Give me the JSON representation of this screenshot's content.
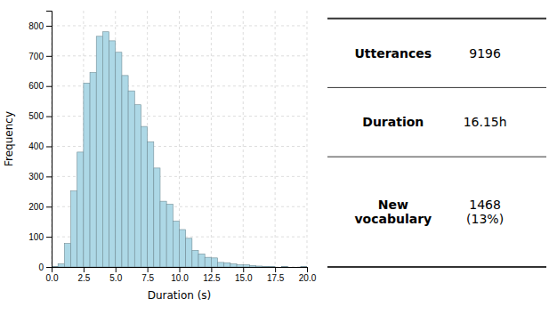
{
  "chart_data": [
    {
      "type": "histogram",
      "xlabel": "Duration (s)",
      "ylabel": "Frequency",
      "bins": [
        0,
        0.5,
        1,
        1.5,
        2,
        2.5,
        3,
        3.5,
        4,
        4.5,
        5,
        5.5,
        6,
        6.5,
        7,
        7.5,
        8,
        8.5,
        9,
        9.5,
        10,
        10.5,
        11,
        11.5,
        12,
        12.5,
        13,
        13.5,
        14,
        14.5,
        15,
        15.5,
        16,
        16.5,
        17,
        17.5,
        18,
        18.5,
        19,
        19.5,
        20
      ],
      "values": [
        2,
        10,
        78,
        252,
        381,
        610,
        645,
        765,
        780,
        750,
        712,
        635,
        584,
        538,
        466,
        415,
        328,
        218,
        208,
        152,
        124,
        95,
        55,
        43,
        32,
        30,
        15,
        14,
        10,
        7,
        7,
        5,
        3,
        2,
        1,
        0,
        1,
        0,
        0,
        1
      ],
      "color": "#add8e6",
      "xlim": [
        0,
        20
      ],
      "ylim": [
        0,
        850
      ],
      "xticks": [
        {
          "value": 0,
          "label": "0.0"
        },
        2.5,
        {
          "value": 5,
          "label": "5.0"
        },
        7.5,
        {
          "value": 10,
          "label": "10.0"
        },
        12.5,
        {
          "value": 15,
          "label": "15.0"
        },
        17.5,
        {
          "value": 20,
          "label": "20.0"
        }
      ],
      "yticks": [
        0,
        100,
        200,
        300,
        400,
        500,
        600,
        700,
        800
      ],
      "grid": true
    },
    {
      "type": "table",
      "rows": [
        [
          "Utterances",
          "9196"
        ],
        [
          "Duration",
          "16.15h"
        ],
        [
          "New\nvocabulary",
          "1468\n(13%)"
        ]
      ]
    }
  ]
}
